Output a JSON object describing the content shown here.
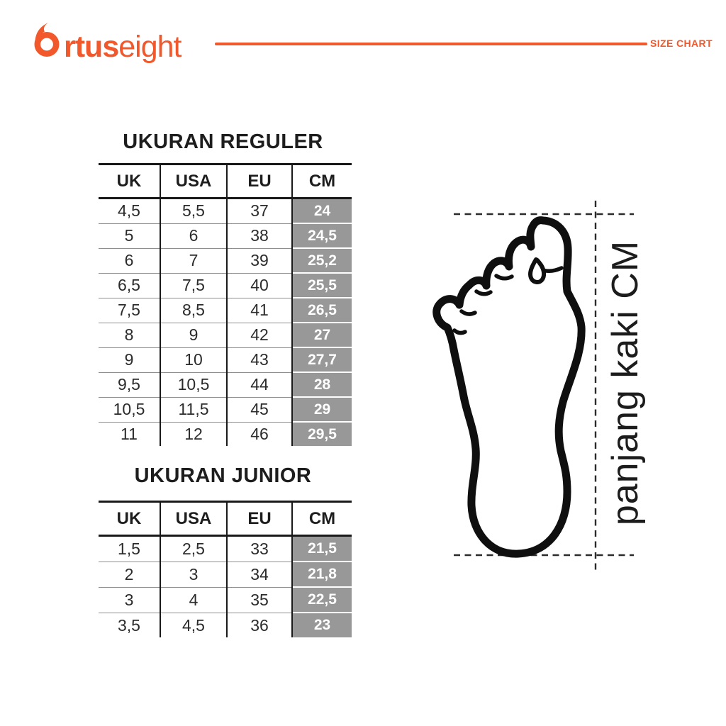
{
  "header": {
    "brand": "Ortuseight",
    "brand_bold": "rtus",
    "brand_light": "eight",
    "page_label": "SIZE CHART"
  },
  "colors": {
    "accent": "#F1582B",
    "cm_cell_fill": "#989898",
    "ink": "#1d1d1d"
  },
  "tables": [
    {
      "title": "UKURAN REGULER",
      "columns": [
        "UK",
        "USA",
        "EU",
        "CM"
      ],
      "rows": [
        [
          "4,5",
          "5,5",
          "37",
          "24"
        ],
        [
          "5",
          "6",
          "38",
          "24,5"
        ],
        [
          "6",
          "7",
          "39",
          "25,2"
        ],
        [
          "6,5",
          "7,5",
          "40",
          "25,5"
        ],
        [
          "7,5",
          "8,5",
          "41",
          "26,5"
        ],
        [
          "8",
          "9",
          "42",
          "27"
        ],
        [
          "9",
          "10",
          "43",
          "27,7"
        ],
        [
          "9,5",
          "10,5",
          "44",
          "28"
        ],
        [
          "10,5",
          "11,5",
          "45",
          "29"
        ],
        [
          "11",
          "12",
          "46",
          "29,5"
        ]
      ]
    },
    {
      "title": "UKURAN JUNIOR",
      "columns": [
        "UK",
        "USA",
        "EU",
        "CM"
      ],
      "rows": [
        [
          "1,5",
          "2,5",
          "33",
          "21,5"
        ],
        [
          "2",
          "3",
          "34",
          "21,8"
        ],
        [
          "3",
          "4",
          "35",
          "22,5"
        ],
        [
          "3,5",
          "4,5",
          "36",
          "23"
        ]
      ]
    }
  ],
  "diagram": {
    "label": "panjang kaki CM"
  }
}
